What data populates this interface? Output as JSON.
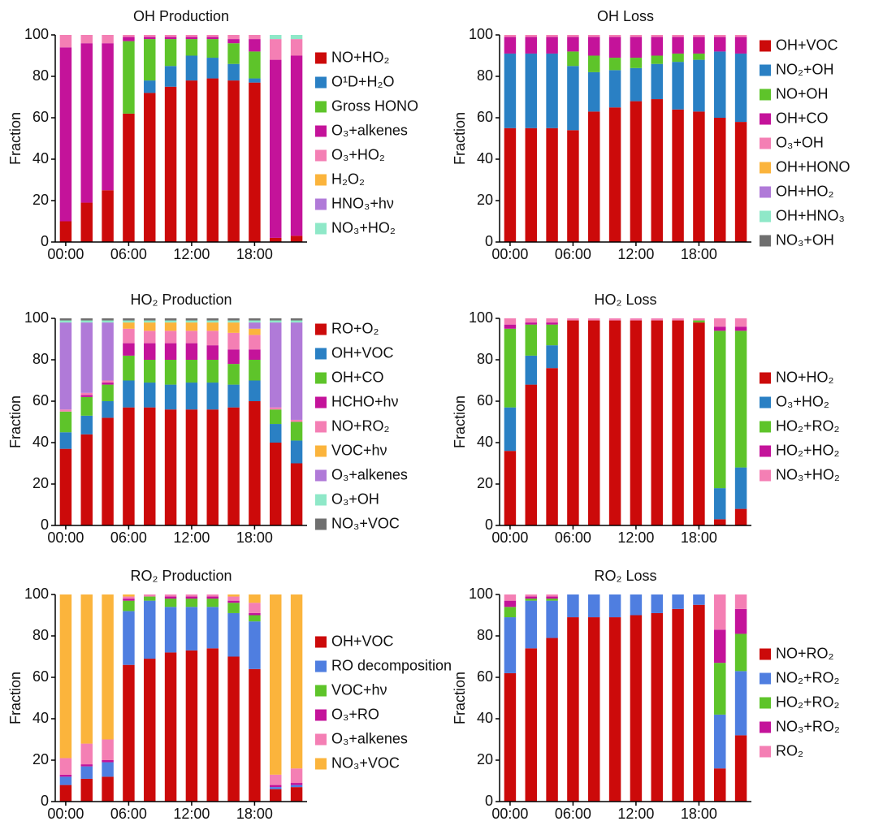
{
  "chart_data": [
    {
      "type": "stacked_bar",
      "title": "OH Production",
      "ylabel": "Fraction",
      "categories": [
        "00:00",
        null,
        null,
        "06:00",
        null,
        null,
        "12:00",
        null,
        null,
        "18:00",
        null,
        null
      ],
      "ylim": [
        0,
        100
      ],
      "yticks": [
        0,
        20,
        40,
        60,
        80,
        100
      ],
      "legend": "right",
      "series": [
        {
          "name": "NO+HO₂",
          "color": "#cc0a0a",
          "values": [
            10,
            19,
            25,
            62,
            72,
            75,
            78,
            79,
            78,
            77,
            2,
            3
          ]
        },
        {
          "name": "O¹D+H₂O",
          "color": "#2a80c4",
          "values": [
            0,
            0,
            0,
            0,
            6,
            10,
            12,
            10,
            8,
            2,
            0,
            0
          ]
        },
        {
          "name": "Gross HONO",
          "color": "#5ec42a",
          "values": [
            0,
            0,
            0,
            35,
            20,
            13,
            8,
            9,
            10,
            13,
            0,
            0
          ]
        },
        {
          "name": "O₃+alkenes",
          "color": "#c4139a",
          "values": [
            84,
            77,
            71,
            2,
            1,
            1,
            1,
            1,
            2,
            6,
            86,
            87
          ]
        },
        {
          "name": "O₃+HO₂",
          "color": "#f47fb4",
          "values": [
            6,
            4,
            4,
            1,
            1,
            1,
            1,
            1,
            2,
            2,
            10,
            8
          ]
        },
        {
          "name": "H₂O₂",
          "color": "#fbb43c",
          "values": [
            0,
            0,
            0,
            0,
            0,
            0,
            0,
            0,
            0,
            0,
            0,
            0
          ]
        },
        {
          "name": "HNO₃+hν",
          "color": "#b07ad8",
          "values": [
            0,
            0,
            0,
            0,
            0,
            0,
            0,
            0,
            0,
            0,
            0,
            0
          ]
        },
        {
          "name": "NO₃+HO₂",
          "color": "#8fe8c8",
          "values": [
            0,
            0,
            0,
            0,
            0,
            0,
            0,
            0,
            0,
            0,
            2,
            2
          ]
        }
      ]
    },
    {
      "type": "stacked_bar",
      "title": "OH Loss",
      "ylabel": "Fraction",
      "categories": [
        "00:00",
        null,
        null,
        "06:00",
        null,
        null,
        "12:00",
        null,
        null,
        "18:00",
        null,
        null
      ],
      "ylim": [
        0,
        100
      ],
      "yticks": [
        0,
        20,
        40,
        60,
        80,
        100
      ],
      "legend": "right",
      "series": [
        {
          "name": "OH+VOC",
          "color": "#cc0a0a",
          "values": [
            55,
            55,
            55,
            54,
            63,
            65,
            68,
            69,
            64,
            63,
            60,
            58
          ]
        },
        {
          "name": "NO₂+OH",
          "color": "#2a80c4",
          "values": [
            36,
            36,
            36,
            31,
            19,
            18,
            16,
            17,
            23,
            25,
            32,
            33
          ]
        },
        {
          "name": "NO+OH",
          "color": "#5ec42a",
          "values": [
            0,
            0,
            0,
            7,
            8,
            6,
            5,
            4,
            4,
            3,
            0,
            0
          ]
        },
        {
          "name": "OH+CO",
          "color": "#c4139a",
          "values": [
            8,
            8,
            8,
            7,
            9,
            10,
            10,
            9,
            8,
            8,
            7,
            8
          ]
        },
        {
          "name": "O₃+OH",
          "color": "#f47fb4",
          "values": [
            1,
            1,
            1,
            1,
            1,
            1,
            1,
            1,
            1,
            1,
            1,
            1
          ]
        },
        {
          "name": "OH+HONO",
          "color": "#fbb43c",
          "values": [
            0,
            0,
            0,
            0,
            0,
            0,
            0,
            0,
            0,
            0,
            0,
            0
          ]
        },
        {
          "name": "OH+HO₂",
          "color": "#b07ad8",
          "values": [
            0,
            0,
            0,
            0,
            0,
            0,
            0,
            0,
            0,
            0,
            0,
            0
          ]
        },
        {
          "name": "OH+HNO₃",
          "color": "#8fe8c8",
          "values": [
            0,
            0,
            0,
            0,
            0,
            0,
            0,
            0,
            0,
            0,
            0,
            0
          ]
        },
        {
          "name": "NO₃+OH",
          "color": "#6f6f6f",
          "values": [
            0,
            0,
            0,
            0,
            0,
            0,
            0,
            0,
            0,
            0,
            0,
            0
          ]
        }
      ]
    },
    {
      "type": "stacked_bar",
      "title": "HO₂ Production",
      "ylabel": "Fraction",
      "categories": [
        "00:00",
        null,
        null,
        "06:00",
        null,
        null,
        "12:00",
        null,
        null,
        "18:00",
        null,
        null
      ],
      "ylim": [
        0,
        100
      ],
      "yticks": [
        0,
        20,
        40,
        60,
        80,
        100
      ],
      "legend": "right",
      "series": [
        {
          "name": "RO+O₂",
          "color": "#cc0a0a",
          "values": [
            37,
            44,
            52,
            57,
            57,
            56,
            56,
            56,
            57,
            60,
            40,
            30
          ]
        },
        {
          "name": "OH+VOC",
          "color": "#2a80c4",
          "values": [
            8,
            9,
            8,
            13,
            12,
            12,
            13,
            13,
            11,
            10,
            9,
            11
          ]
        },
        {
          "name": "OH+CO",
          "color": "#5ec42a",
          "values": [
            10,
            9,
            8,
            12,
            11,
            12,
            11,
            11,
            10,
            10,
            7,
            9
          ]
        },
        {
          "name": "HCHO+hν",
          "color": "#c4139a",
          "values": [
            0,
            1,
            1,
            6,
            8,
            8,
            8,
            7,
            7,
            5,
            0,
            0
          ]
        },
        {
          "name": "NO+RO₂",
          "color": "#f47fb4",
          "values": [
            1,
            1,
            1,
            7,
            6,
            6,
            6,
            7,
            8,
            7,
            1,
            1
          ]
        },
        {
          "name": "VOC+hν",
          "color": "#fbb43c",
          "values": [
            0,
            0,
            0,
            3,
            4,
            4,
            4,
            4,
            5,
            3,
            0,
            0
          ]
        },
        {
          "name": "O₃+alkenes",
          "color": "#b07ad8",
          "values": [
            42,
            34,
            28,
            0,
            0,
            0,
            0,
            0,
            0,
            3,
            41,
            47
          ]
        },
        {
          "name": "O₃+OH",
          "color": "#8fe8c8",
          "values": [
            1,
            1,
            1,
            1,
            1,
            1,
            1,
            1,
            1,
            1,
            1,
            1
          ]
        },
        {
          "name": "NO₃+VOC",
          "color": "#6f6f6f",
          "values": [
            1,
            1,
            1,
            1,
            1,
            1,
            1,
            1,
            1,
            1,
            1,
            1
          ]
        }
      ]
    },
    {
      "type": "stacked_bar",
      "title": "HO₂ Loss",
      "ylabel": "Fraction",
      "categories": [
        "00:00",
        null,
        null,
        "06:00",
        null,
        null,
        "12:00",
        null,
        null,
        "18:00",
        null,
        null
      ],
      "ylim": [
        0,
        100
      ],
      "yticks": [
        0,
        20,
        40,
        60,
        80,
        100
      ],
      "legend": "right",
      "series": [
        {
          "name": "NO+HO₂",
          "color": "#cc0a0a",
          "values": [
            36,
            68,
            76,
            99,
            99,
            99,
            99,
            99,
            99,
            98,
            3,
            8
          ]
        },
        {
          "name": "O₃+HO₂",
          "color": "#2a80c4",
          "values": [
            21,
            14,
            11,
            0,
            0,
            0,
            0,
            0,
            0,
            0,
            15,
            20
          ]
        },
        {
          "name": "HO₂+RO₂",
          "color": "#5ec42a",
          "values": [
            38,
            15,
            10,
            0,
            0,
            0,
            0,
            0,
            0,
            1,
            76,
            66
          ]
        },
        {
          "name": "HO₂+HO₂",
          "color": "#c4139a",
          "values": [
            2,
            1,
            1,
            0,
            0,
            0,
            0,
            0,
            0,
            0,
            2,
            2
          ]
        },
        {
          "name": "NO₃+HO₂",
          "color": "#f47fb4",
          "values": [
            3,
            2,
            2,
            1,
            1,
            1,
            1,
            1,
            1,
            1,
            4,
            4
          ]
        }
      ]
    },
    {
      "type": "stacked_bar",
      "title": "RO₂ Production",
      "ylabel": "Fraction",
      "categories": [
        "00:00",
        null,
        null,
        "06:00",
        null,
        null,
        "12:00",
        null,
        null,
        "18:00",
        null,
        null
      ],
      "ylim": [
        0,
        100
      ],
      "yticks": [
        0,
        20,
        40,
        60,
        80,
        100
      ],
      "legend": "right",
      "series": [
        {
          "name": "OH+VOC",
          "color": "#cc0a0a",
          "values": [
            8,
            11,
            12,
            66,
            69,
            72,
            73,
            74,
            70,
            64,
            6,
            7
          ]
        },
        {
          "name": "RO decomposition",
          "color": "#4f7ee0",
          "values": [
            4,
            6,
            7,
            26,
            28,
            22,
            21,
            20,
            21,
            23,
            1,
            1
          ]
        },
        {
          "name": "VOC+hν",
          "color": "#5ec42a",
          "values": [
            0,
            0,
            0,
            5,
            2,
            4,
            4,
            4,
            5,
            3,
            0,
            0
          ]
        },
        {
          "name": "O₃+RO",
          "color": "#c4139a",
          "values": [
            1,
            1,
            1,
            1,
            0,
            1,
            1,
            1,
            1,
            1,
            1,
            1
          ]
        },
        {
          "name": "O₃+alkenes",
          "color": "#f47fb4",
          "values": [
            8,
            10,
            10,
            1,
            1,
            1,
            1,
            1,
            2,
            5,
            5,
            7
          ]
        },
        {
          "name": "NO₃+VOC",
          "color": "#fbb43c",
          "values": [
            79,
            72,
            70,
            1,
            0,
            0,
            0,
            0,
            1,
            4,
            87,
            84
          ]
        }
      ]
    },
    {
      "type": "stacked_bar",
      "title": "RO₂ Loss",
      "ylabel": "Fraction",
      "categories": [
        "00:00",
        null,
        null,
        "06:00",
        null,
        null,
        "12:00",
        null,
        null,
        "18:00",
        null,
        null
      ],
      "ylim": [
        0,
        100
      ],
      "yticks": [
        0,
        20,
        40,
        60,
        80,
        100
      ],
      "legend": "right",
      "series": [
        {
          "name": "NO+RO₂",
          "color": "#cc0a0a",
          "values": [
            62,
            74,
            79,
            89,
            89,
            89,
            90,
            91,
            93,
            95,
            16,
            32
          ]
        },
        {
          "name": "NO₂+RO₂",
          "color": "#4f7ee0",
          "values": [
            27,
            23,
            18,
            11,
            11,
            11,
            10,
            9,
            7,
            5,
            26,
            31
          ]
        },
        {
          "name": "HO₂+RO₂",
          "color": "#5ec42a",
          "values": [
            5,
            1,
            1,
            0,
            0,
            0,
            0,
            0,
            0,
            0,
            25,
            18
          ]
        },
        {
          "name": "NO₃+RO₂",
          "color": "#c4139a",
          "values": [
            3,
            1,
            1,
            0,
            0,
            0,
            0,
            0,
            0,
            0,
            16,
            12
          ]
        },
        {
          "name": "RO₂",
          "color": "#f47fb4",
          "values": [
            3,
            1,
            1,
            0,
            0,
            0,
            0,
            0,
            0,
            0,
            17,
            7
          ]
        }
      ]
    }
  ]
}
